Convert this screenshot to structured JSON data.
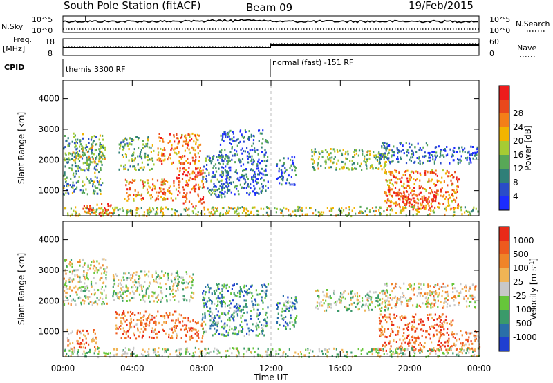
{
  "header": {
    "station": "South Pole Station (fitACF)",
    "beam": "Beam 09",
    "date": "19/Feb/2015"
  },
  "strips": {
    "nsky_label": "N.Sky",
    "nsky_ticks": [
      "10^5",
      "10^0"
    ],
    "nsearch_label": "N.Search",
    "freq_label_1": "Freq.",
    "freq_label_2": "[MHz]",
    "freq_ticks": [
      "18",
      "8"
    ],
    "nave_label": "Nave",
    "nave_ticks": [
      "60",
      "0"
    ],
    "cpid_label": "CPID",
    "cpid_segments": [
      {
        "label": "themis 3300 RF",
        "start_hour": 0
      },
      {
        "label": "normal (fast) -151 RF",
        "start_hour": 12
      }
    ]
  },
  "chart_data": [
    {
      "type": "heatmap",
      "name": "power-panel",
      "xlabel": "",
      "ylabel": "Slant Range [km]",
      "xlim": [
        0,
        24
      ],
      "ylim": [
        180,
        4600
      ],
      "yticks": [
        1000,
        2000,
        3000,
        4000
      ],
      "xticks": [
        "00:00",
        "04:00",
        "08:00",
        "12:00",
        "16:00",
        "20:00",
        "00:00"
      ],
      "colorbar": {
        "label": "Power [dB]",
        "ticks": [
          "4",
          "8",
          "12",
          "16",
          "20",
          "24",
          "28"
        ],
        "colors": [
          "#1c2cff",
          "#2a4cc8",
          "#2f7f78",
          "#58a857",
          "#a6cc33",
          "#f2b400",
          "#f47f18",
          "#e8481c",
          "#ee1c1c"
        ]
      },
      "regions": [
        {
          "t0": 0.0,
          "t1": 2.3,
          "r0": 900,
          "r1": 2900,
          "level": 0.35
        },
        {
          "t0": 0.5,
          "t1": 2.5,
          "r0": 1900,
          "r1": 2500,
          "level": 0.5
        },
        {
          "t0": 3.2,
          "t1": 5.2,
          "r0": 1700,
          "r1": 2800,
          "level": 0.4
        },
        {
          "t0": 5.4,
          "t1": 7.9,
          "r0": 1900,
          "r1": 2900,
          "level": 0.75
        },
        {
          "t0": 3.5,
          "t1": 6.5,
          "r0": 700,
          "r1": 1400,
          "level": 0.7
        },
        {
          "t0": 6.5,
          "t1": 8.1,
          "r0": 500,
          "r1": 1800,
          "level": 0.85
        },
        {
          "t0": 8.0,
          "t1": 9.5,
          "r0": 800,
          "r1": 2200,
          "level": 0.3
        },
        {
          "t0": 9.0,
          "t1": 11.8,
          "r0": 900,
          "r1": 3000,
          "level": 0.2
        },
        {
          "t0": 12.3,
          "t1": 13.4,
          "r0": 1200,
          "r1": 2200,
          "level": 0.2
        },
        {
          "t0": 14.3,
          "t1": 18.8,
          "r0": 1700,
          "r1": 2400,
          "level": 0.45
        },
        {
          "t0": 18.2,
          "t1": 21.0,
          "r0": 1900,
          "r1": 2600,
          "level": 0.2
        },
        {
          "t0": 21.0,
          "t1": 23.9,
          "r0": 1900,
          "r1": 2500,
          "level": 0.15
        },
        {
          "t0": 18.5,
          "t1": 22.8,
          "r0": 400,
          "r1": 1700,
          "level": 0.75
        },
        {
          "t0": 19.0,
          "t1": 21.5,
          "r0": 500,
          "r1": 1000,
          "level": 0.9
        },
        {
          "t0": 0.0,
          "t1": 24.0,
          "r0": 200,
          "r1": 500,
          "level": 0.5
        },
        {
          "t0": 1.0,
          "t1": 2.8,
          "r0": 200,
          "r1": 600,
          "level": 0.85
        }
      ]
    },
    {
      "type": "heatmap",
      "name": "velocity-panel",
      "xlabel": "Time UT",
      "ylabel": "Slant Range [km]",
      "xlim": [
        0,
        24
      ],
      "ylim": [
        180,
        4600
      ],
      "yticks": [
        1000,
        2000,
        3000,
        4000
      ],
      "xticks": [
        "00:00",
        "04:00",
        "08:00",
        "12:00",
        "16:00",
        "20:00",
        "00:00"
      ],
      "colorbar": {
        "label": "Velocity [m s^-1]",
        "ticks": [
          "1000",
          "500",
          "100",
          "25",
          "-25",
          "-100",
          "-500",
          "-1000"
        ],
        "colors": [
          "#1f3fd0",
          "#2a6fa8",
          "#3a9a6a",
          "#66c63a",
          "#c8c8c8",
          "#f0b455",
          "#f08428",
          "#ee5a1e",
          "#e82a18"
        ]
      },
      "regions": [
        {
          "t0": 0.0,
          "t1": 2.5,
          "r0": 1900,
          "r1": 3400,
          "level": 0.5
        },
        {
          "t0": 0.2,
          "t1": 2.0,
          "r0": 500,
          "r1": 1100,
          "level": 0.75
        },
        {
          "t0": 2.8,
          "t1": 7.5,
          "r0": 2000,
          "r1": 3000,
          "level": 0.45
        },
        {
          "t0": 3.0,
          "t1": 6.8,
          "r0": 800,
          "r1": 1700,
          "level": 0.75
        },
        {
          "t0": 6.8,
          "t1": 8.1,
          "r0": 700,
          "r1": 1500,
          "level": 0.85
        },
        {
          "t0": 8.0,
          "t1": 11.8,
          "r0": 900,
          "r1": 2600,
          "level": 0.25
        },
        {
          "t0": 12.3,
          "t1": 13.5,
          "r0": 1100,
          "r1": 2200,
          "level": 0.3
        },
        {
          "t0": 14.5,
          "t1": 18.8,
          "r0": 1700,
          "r1": 2400,
          "level": 0.45
        },
        {
          "t0": 18.5,
          "t1": 23.8,
          "r0": 1800,
          "r1": 2600,
          "level": 0.6
        },
        {
          "t0": 18.2,
          "t1": 22.5,
          "r0": 400,
          "r1": 1600,
          "level": 0.8
        },
        {
          "t0": 22.5,
          "t1": 24.0,
          "r0": 400,
          "r1": 1100,
          "level": 0.7
        },
        {
          "t0": 0.0,
          "t1": 24.0,
          "r0": 200,
          "r1": 500,
          "level": 0.45
        }
      ]
    }
  ]
}
